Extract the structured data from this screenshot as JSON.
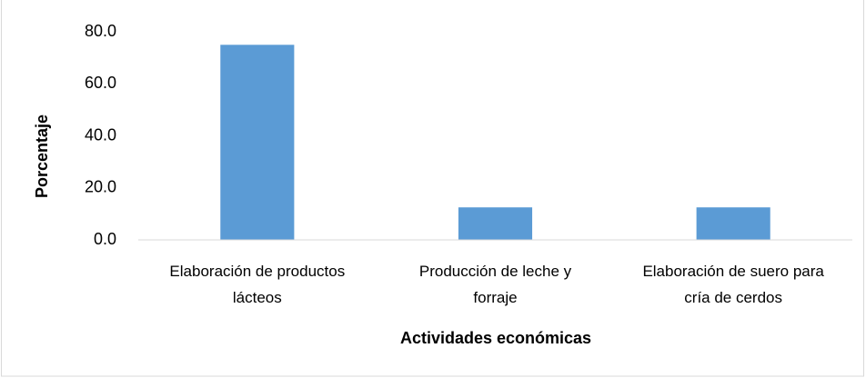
{
  "chart_data": {
    "type": "bar",
    "x_label": "Actividades económicas",
    "y_label": "Porcentaje",
    "categories": [
      "Elaboración de productos lácteos",
      "Producción de leche y forraje",
      "Elaboración de suero para cría de cerdos"
    ],
    "values": [
      75,
      12.5,
      12.5
    ],
    "color": "#5b9bd5",
    "ylim": [
      0,
      80
    ],
    "yticks": [
      {
        "value": 0,
        "label": "0.0"
      },
      {
        "value": 20,
        "label": "20.0"
      },
      {
        "value": 40,
        "label": "40.0"
      },
      {
        "value": 60,
        "label": "60.0"
      },
      {
        "value": 80,
        "label": "80.0"
      }
    ],
    "grid": false
  }
}
